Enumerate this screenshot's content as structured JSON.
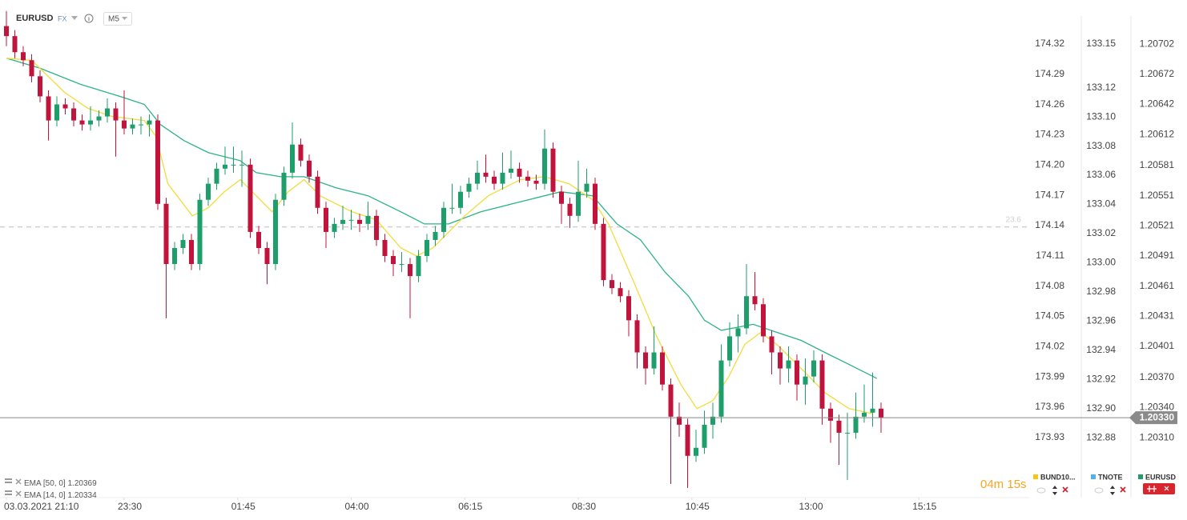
{
  "chart_data": {
    "type": "candlestick",
    "header": {
      "symbol": "EURUSD",
      "market": "FX",
      "timeframe": "M5"
    },
    "countdown": "04m 15s",
    "xlim": [
      -0.762,
      121.619
    ],
    "xticks": [
      {
        "value": 0,
        "label": "03.03.2021  21:10"
      },
      {
        "value": 14,
        "label": "23:30"
      },
      {
        "value": 27.5,
        "label": "01:45"
      },
      {
        "value": 41,
        "label": "04:00"
      },
      {
        "value": 54.5,
        "label": "06:15"
      },
      {
        "value": 68,
        "label": "08:30"
      },
      {
        "value": 81.5,
        "label": "10:45"
      },
      {
        "value": 95,
        "label": "13:00"
      },
      {
        "value": 108.5,
        "label": "15:15"
      }
    ],
    "ylim": [
      1.20252,
      1.20738
    ],
    "yticks": [
      1.20702,
      1.20672,
      1.20642,
      1.20612,
      1.20581,
      1.20551,
      1.20521,
      1.20491,
      1.20461,
      1.20431,
      1.20401,
      {
        "value": 1.2037,
        "label": "1.20370"
      },
      {
        "value": 1.2034,
        "label": "1.20340"
      },
      {
        "value": 1.2031,
        "label": "1.20310"
      }
    ],
    "bund_axis": {
      "ylim": [
        173.872,
        174.3557
      ],
      "yticks": [
        174.32,
        174.29,
        174.26,
        174.23,
        {
          "value": 174.2,
          "label": "174.20"
        },
        174.17,
        174.14,
        174.11,
        174.08,
        174.05,
        174.02,
        173.99,
        173.96,
        173.93
      ]
    },
    "tnote_axis": {
      "ylim": [
        132.84,
        133.1747
      ],
      "yticks": [
        133.15,
        133.12,
        {
          "value": 133.1,
          "label": "133.10"
        },
        133.08,
        133.06,
        133.04,
        133.02,
        {
          "value": 133,
          "label": "133.00"
        },
        132.98,
        132.96,
        132.94,
        132.92,
        {
          "value": 132.9,
          "label": "132.90"
        },
        132.88
      ]
    },
    "last_price": {
      "value": 1.2033,
      "label": "1.20330"
    },
    "fib_level": {
      "value": 1.2052,
      "label": "23.6"
    },
    "series": [
      {
        "name": "EURUSD",
        "up_color": "#1e9e6a",
        "down_color": "#c0143c",
        "values": [
          [
            1.2072,
            1.20735,
            1.207,
            1.2071
          ],
          [
            1.2071,
            1.20716,
            1.20688,
            1.20694
          ],
          [
            1.20694,
            1.207,
            1.2068,
            1.20686
          ],
          [
            1.20686,
            1.20692,
            1.20664,
            1.2067
          ],
          [
            1.2067,
            1.20676,
            1.20644,
            1.2065
          ],
          [
            1.2065,
            1.20656,
            1.20606,
            1.20626
          ],
          [
            1.20626,
            1.2065,
            1.2062,
            1.20642
          ],
          [
            1.20642,
            1.20648,
            1.20632,
            1.20638
          ],
          [
            1.20638,
            1.20644,
            1.2062,
            1.20626
          ],
          [
            1.20626,
            1.20632,
            1.20616,
            1.20622
          ],
          [
            1.20622,
            1.2064,
            1.20616,
            1.20626
          ],
          [
            1.20626,
            1.20636,
            1.2062,
            1.2063
          ],
          [
            1.2063,
            1.20648,
            1.20624,
            1.20638
          ],
          [
            1.20638,
            1.20644,
            1.2059,
            1.20626
          ],
          [
            1.20626,
            1.20656,
            1.20612,
            1.20618
          ],
          [
            1.20618,
            1.20628,
            1.20612,
            1.20622
          ],
          [
            1.20622,
            1.2063,
            1.20612,
            1.20622
          ],
          [
            1.20622,
            1.20632,
            1.2061,
            1.20626
          ],
          [
            1.20626,
            1.20632,
            1.20537,
            1.20543
          ],
          [
            1.20543,
            1.20549,
            1.20429,
            1.20483
          ],
          [
            1.20483,
            1.20505,
            1.20477,
            1.20499
          ],
          [
            1.20499,
            1.20513,
            1.20493,
            1.20507
          ],
          [
            1.20507,
            1.20513,
            1.20477,
            1.20483
          ],
          [
            1.20483,
            1.20553,
            1.20477,
            1.20547
          ],
          [
            1.20547,
            1.20569,
            1.20541,
            1.20563
          ],
          [
            1.20563,
            1.20584,
            1.20557,
            1.20578
          ],
          [
            1.20578,
            1.206,
            1.20572,
            1.20582
          ],
          [
            1.20582,
            1.206,
            1.20574,
            1.20582
          ],
          [
            1.20582,
            1.20596,
            1.2056,
            1.20582
          ],
          [
            1.20582,
            1.20588,
            1.20509,
            1.20515
          ],
          [
            1.20515,
            1.20521,
            1.20493,
            1.20499
          ],
          [
            1.20499,
            1.20505,
            1.20463,
            1.20483
          ],
          [
            1.20483,
            1.20553,
            1.20477,
            1.20547
          ],
          [
            1.20547,
            1.2058,
            1.20541,
            1.20574
          ],
          [
            1.20574,
            1.20624,
            1.20568,
            1.20602
          ],
          [
            1.20602,
            1.20608,
            1.2058,
            1.20586
          ],
          [
            1.20586,
            1.20592,
            1.20564,
            1.2057
          ],
          [
            1.2057,
            1.20576,
            1.20533,
            1.20539
          ],
          [
            1.20539,
            1.20545,
            1.20499,
            1.20515
          ],
          [
            1.20515,
            1.20529,
            1.20509,
            1.20523
          ],
          [
            1.20523,
            1.20541,
            1.20517,
            1.20527
          ],
          [
            1.20527,
            1.20537,
            1.20517,
            1.20527
          ],
          [
            1.20527,
            1.20533,
            1.20515,
            1.20523
          ],
          [
            1.20523,
            1.20545,
            1.20517,
            1.20531
          ],
          [
            1.20531,
            1.20537,
            1.20501,
            1.20507
          ],
          [
            1.20507,
            1.20513,
            1.20485,
            1.20491
          ],
          [
            1.20491,
            1.20497,
            1.20471,
            1.20483
          ],
          [
            1.20483,
            1.20495,
            1.20475,
            1.20483
          ],
          [
            1.20483,
            1.20489,
            1.20429,
            1.20471
          ],
          [
            1.20471,
            1.20497,
            1.20465,
            1.20491
          ],
          [
            1.20491,
            1.20513,
            1.20485,
            1.20507
          ],
          [
            1.20507,
            1.20521,
            1.20501,
            1.20515
          ],
          [
            1.20515,
            1.20545,
            1.20509,
            1.20539
          ],
          [
            1.20539,
            1.20563,
            1.20533,
            1.20539
          ],
          [
            1.20539,
            1.20561,
            1.20533,
            1.20555
          ],
          [
            1.20555,
            1.20569,
            1.20549,
            1.20563
          ],
          [
            1.20563,
            1.20586,
            1.20557,
            1.20574
          ],
          [
            1.20574,
            1.20592,
            1.20564,
            1.2057
          ],
          [
            1.2057,
            1.20576,
            1.20557,
            1.20563
          ],
          [
            1.20563,
            1.20594,
            1.20557,
            1.20574
          ],
          [
            1.20574,
            1.20596,
            1.20568,
            1.20578
          ],
          [
            1.20578,
            1.20584,
            1.20564,
            1.2057
          ],
          [
            1.2057,
            1.20576,
            1.2056,
            1.20566
          ],
          [
            1.20566,
            1.20572,
            1.20557,
            1.20563
          ],
          [
            1.20563,
            1.20617,
            1.20557,
            1.20598
          ],
          [
            1.20598,
            1.20604,
            1.20549,
            1.20555
          ],
          [
            1.20555,
            1.20561,
            1.20523,
            1.20543
          ],
          [
            1.20543,
            1.20549,
            1.20519,
            1.20531
          ],
          [
            1.20531,
            1.20586,
            1.20525,
            1.20555
          ],
          [
            1.20555,
            1.20578,
            1.20549,
            1.20563
          ],
          [
            1.20563,
            1.20569,
            1.20517,
            1.20523
          ],
          [
            1.20523,
            1.20529,
            1.20461,
            1.20467
          ],
          [
            1.20467,
            1.20473,
            1.20453,
            1.20459
          ],
          [
            1.20459,
            1.20465,
            1.20445,
            1.20451
          ],
          [
            1.20451,
            1.20457,
            1.20411,
            1.20427
          ],
          [
            1.20427,
            1.20433,
            1.20379,
            1.20395
          ],
          [
            1.20395,
            1.20401,
            1.20363,
            1.20379
          ],
          [
            1.20379,
            1.20421,
            1.20373,
            1.20395
          ],
          [
            1.20395,
            1.20401,
            1.20357,
            1.20363
          ],
          [
            1.20363,
            1.20369,
            1.20264,
            1.20331
          ],
          [
            1.20331,
            1.20345,
            1.20311,
            1.20323
          ],
          [
            1.20323,
            1.20329,
            1.2026,
            1.20292
          ],
          [
            1.20292,
            1.20318,
            1.20286,
            1.203
          ],
          [
            1.203,
            1.20337,
            1.20294,
            1.20323
          ],
          [
            1.20323,
            1.20345,
            1.20309,
            1.20331
          ],
          [
            1.20331,
            1.20403,
            1.20325,
            1.20387
          ],
          [
            1.20387,
            1.20425,
            1.20381,
            1.20411
          ],
          [
            1.20411,
            1.20433,
            1.20395,
            1.20419
          ],
          [
            1.20419,
            1.20483,
            1.20413,
            1.20451
          ],
          [
            1.20451,
            1.20475,
            1.20437,
            1.20443
          ],
          [
            1.20443,
            1.20449,
            1.20405,
            1.20411
          ],
          [
            1.20411,
            1.20417,
            1.20373,
            1.20395
          ],
          [
            1.20395,
            1.20401,
            1.20363,
            1.20379
          ],
          [
            1.20379,
            1.20401,
            1.20365,
            1.20387
          ],
          [
            1.20387,
            1.20393,
            1.20347,
            1.20363
          ],
          [
            1.20363,
            1.20389,
            1.20343,
            1.20371
          ],
          [
            1.20371,
            1.20397,
            1.20365,
            1.20387
          ],
          [
            1.20387,
            1.20393,
            1.20323,
            1.20339
          ],
          [
            1.20339,
            1.20345,
            1.20305,
            1.20327
          ],
          [
            1.20327,
            1.20333,
            1.20283,
            1.20315
          ],
          [
            1.20315,
            1.20335,
            1.20268,
            1.20315
          ],
          [
            1.20315,
            1.20355,
            1.20309,
            1.20331
          ],
          [
            1.20331,
            1.20363,
            1.20325,
            1.20335
          ],
          [
            1.20335,
            1.20375,
            1.20321,
            1.20339
          ],
          [
            1.20339,
            1.20345,
            1.20315,
            1.2033
          ]
        ]
      }
    ],
    "lines": [
      {
        "name": "EMA [50, 0]",
        "value": 1.20369,
        "color": "#2bb38a",
        "x": [
          0,
          4,
          8.8,
          13.5,
          16.4,
          18.3,
          21.1,
          24,
          27.8,
          29.7,
          32.6,
          35.4,
          39.2,
          43,
          46.9,
          49.7,
          52.6,
          56.4,
          61.1,
          65.9,
          69.7,
          72.6,
          75.4,
          78.3,
          81.1,
          83,
          85,
          88.8,
          91.6,
          94.5,
          97.3,
          100.2,
          103.5
        ],
        "values": [
          1.20688,
          1.20678,
          1.20662,
          1.2065,
          1.20642,
          1.20622,
          1.20606,
          1.20594,
          1.20586,
          1.20574,
          1.2057,
          1.2057,
          1.20559,
          1.20551,
          1.20535,
          1.20523,
          1.20523,
          1.20535,
          1.20545,
          1.20555,
          1.20551,
          1.20523,
          1.20507,
          1.20475,
          1.20451,
          1.20427,
          1.20417,
          1.20423,
          1.20415,
          1.20407,
          1.20395,
          1.20383,
          1.20369
        ]
      },
      {
        "name": "EMA [14, 0]",
        "value": 1.20334,
        "color": "#f2dc3c",
        "x": [
          0,
          3,
          6.9,
          9.7,
          12.6,
          16.4,
          17.8,
          19.2,
          22.1,
          24,
          25.9,
          27.8,
          29.7,
          31.6,
          33.5,
          35.4,
          37.3,
          41.1,
          44,
          46.9,
          48.8,
          50.7,
          52.6,
          54.5,
          57.3,
          61.1,
          64,
          66.9,
          69.7,
          71.6,
          74.5,
          77.3,
          80.2,
          82.1,
          84,
          85.9,
          87.8,
          89.7,
          91.6,
          94.5,
          97.3,
          100.2,
          103
        ],
        "values": [
          1.20688,
          1.20686,
          1.20654,
          1.20638,
          1.2063,
          1.20626,
          1.2061,
          1.20563,
          1.20531,
          1.20539,
          1.20555,
          1.20567,
          1.20551,
          1.20535,
          1.20555,
          1.20567,
          1.20551,
          1.20535,
          1.20527,
          1.20499,
          1.20491,
          1.20499,
          1.20515,
          1.20531,
          1.20551,
          1.20567,
          1.2057,
          1.20563,
          1.20547,
          1.20523,
          1.20467,
          1.20411,
          1.20363,
          1.20339,
          1.20347,
          1.20371,
          1.20403,
          1.20415,
          1.20403,
          1.20379,
          1.20355,
          1.20339,
          1.20334
        ]
      }
    ],
    "instruments": [
      {
        "name": "BUND10...",
        "color": "#f5c518"
      },
      {
        "name": "TNOTE",
        "color": "#4fb3e8"
      },
      {
        "name": "EURUSD",
        "color": "#1e9e6a"
      }
    ]
  }
}
